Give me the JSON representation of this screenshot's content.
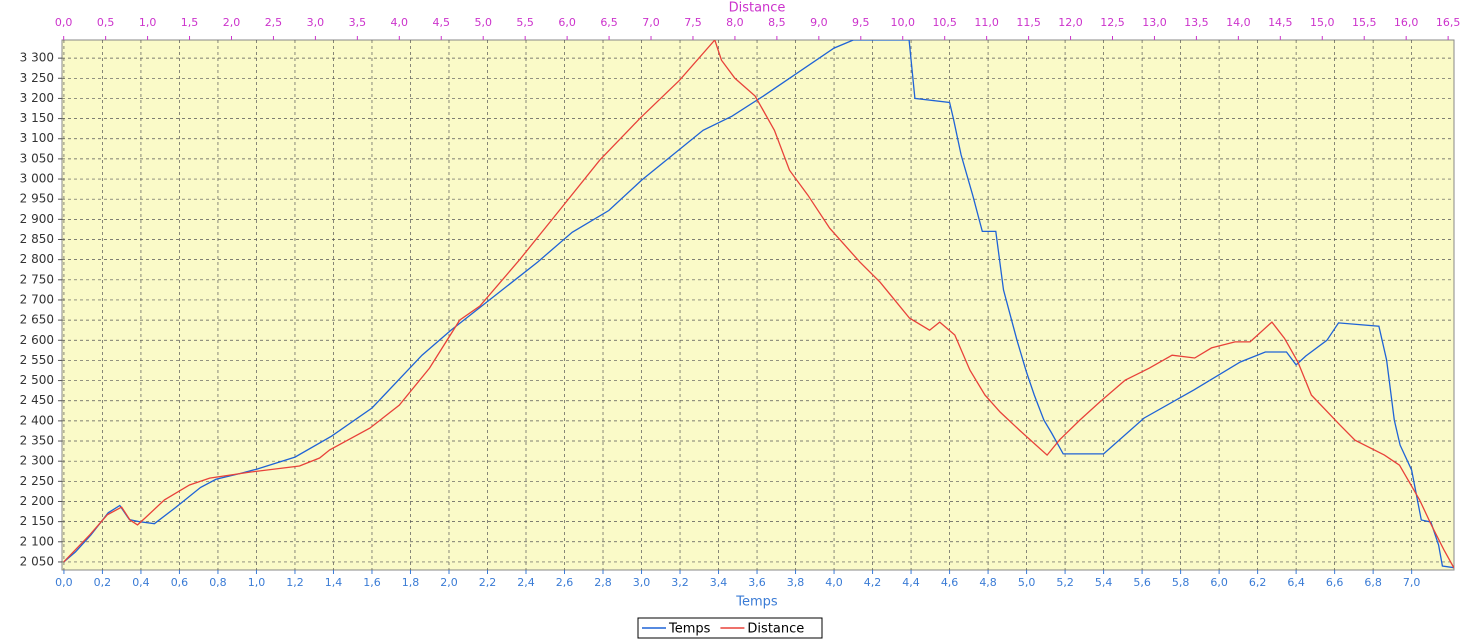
{
  "chart_data": {
    "type": "line",
    "x_label": "Temps",
    "x2_label": "Distance",
    "xlim": [
      -0.01,
      7.22
    ],
    "x2lim": [
      -0.02,
      16.57
    ],
    "ylim": [
      2030,
      3345
    ],
    "grid": true,
    "legend": "bottom",
    "background": "#fafac8",
    "yticks": [
      {
        "value": 2050,
        "label": "2 050"
      },
      {
        "value": 2100,
        "label": "2 100"
      },
      {
        "value": 2150,
        "label": "2 150"
      },
      {
        "value": 2200,
        "label": "2 200"
      },
      {
        "value": 2250,
        "label": "2 250"
      },
      {
        "value": 2300,
        "label": "2 300"
      },
      {
        "value": 2350,
        "label": "2 350"
      },
      {
        "value": 2400,
        "label": "2 400"
      },
      {
        "value": 2450,
        "label": "2 450"
      },
      {
        "value": 2500,
        "label": "2 500"
      },
      {
        "value": 2550,
        "label": "2 550"
      },
      {
        "value": 2600,
        "label": "2 600"
      },
      {
        "value": 2650,
        "label": "2 650"
      },
      {
        "value": 2700,
        "label": "2 700"
      },
      {
        "value": 2750,
        "label": "2 750"
      },
      {
        "value": 2800,
        "label": "2 800"
      },
      {
        "value": 2850,
        "label": "2 850"
      },
      {
        "value": 2900,
        "label": "2 900"
      },
      {
        "value": 2950,
        "label": "2 950"
      },
      {
        "value": 3000,
        "label": "3 000"
      },
      {
        "value": 3050,
        "label": "3 050"
      },
      {
        "value": 3100,
        "label": "3 100"
      },
      {
        "value": 3150,
        "label": "3 150"
      },
      {
        "value": 3200,
        "label": "3 200"
      },
      {
        "value": 3250,
        "label": "3 250"
      },
      {
        "value": 3300,
        "label": "3 300"
      }
    ],
    "xticks": [
      {
        "value": 0,
        "label": "0,0"
      },
      {
        "value": 0.2,
        "label": "0,2"
      },
      {
        "value": 0.4,
        "label": "0,4"
      },
      {
        "value": 0.6,
        "label": "0,6"
      },
      {
        "value": 0.8,
        "label": "0,8"
      },
      {
        "value": 1.0,
        "label": "1,0"
      },
      {
        "value": 1.2,
        "label": "1,2"
      },
      {
        "value": 1.4,
        "label": "1,4"
      },
      {
        "value": 1.6,
        "label": "1,6"
      },
      {
        "value": 1.8,
        "label": "1,8"
      },
      {
        "value": 2.0,
        "label": "2,0"
      },
      {
        "value": 2.2,
        "label": "2,2"
      },
      {
        "value": 2.4,
        "label": "2,4"
      },
      {
        "value": 2.6,
        "label": "2,6"
      },
      {
        "value": 2.8,
        "label": "2,8"
      },
      {
        "value": 3.0,
        "label": "3,0"
      },
      {
        "value": 3.2,
        "label": "3,2"
      },
      {
        "value": 3.4,
        "label": "3,4"
      },
      {
        "value": 3.6,
        "label": "3,6"
      },
      {
        "value": 3.8,
        "label": "3,8"
      },
      {
        "value": 4.0,
        "label": "4,0"
      },
      {
        "value": 4.2,
        "label": "4,2"
      },
      {
        "value": 4.4,
        "label": "4,4"
      },
      {
        "value": 4.6,
        "label": "4,6"
      },
      {
        "value": 4.8,
        "label": "4,8"
      },
      {
        "value": 5.0,
        "label": "5,0"
      },
      {
        "value": 5.2,
        "label": "5,2"
      },
      {
        "value": 5.4,
        "label": "5,4"
      },
      {
        "value": 5.6,
        "label": "5,6"
      },
      {
        "value": 5.8,
        "label": "5,8"
      },
      {
        "value": 6.0,
        "label": "6,0"
      },
      {
        "value": 6.2,
        "label": "6,2"
      },
      {
        "value": 6.4,
        "label": "6,4"
      },
      {
        "value": 6.6,
        "label": "6,6"
      },
      {
        "value": 6.8,
        "label": "6,8"
      },
      {
        "value": 7.0,
        "label": "7,0"
      }
    ],
    "x2ticks": [
      {
        "value": 0,
        "label": "0,0"
      },
      {
        "value": 0.5,
        "label": "0,5"
      },
      {
        "value": 1.0,
        "label": "1,0"
      },
      {
        "value": 1.5,
        "label": "1,5"
      },
      {
        "value": 2.0,
        "label": "2,0"
      },
      {
        "value": 2.5,
        "label": "2,5"
      },
      {
        "value": 3.0,
        "label": "3,0"
      },
      {
        "value": 3.5,
        "label": "3,5"
      },
      {
        "value": 4.0,
        "label": "4,0"
      },
      {
        "value": 4.5,
        "label": "4,5"
      },
      {
        "value": 5.0,
        "label": "5,0"
      },
      {
        "value": 5.5,
        "label": "5,5"
      },
      {
        "value": 6.0,
        "label": "6,0"
      },
      {
        "value": 6.5,
        "label": "6,5"
      },
      {
        "value": 7.0,
        "label": "7,0"
      },
      {
        "value": 7.5,
        "label": "7,5"
      },
      {
        "value": 8.0,
        "label": "8,0"
      },
      {
        "value": 8.5,
        "label": "8,5"
      },
      {
        "value": 9.0,
        "label": "9,0"
      },
      {
        "value": 9.5,
        "label": "9,5"
      },
      {
        "value": 10.0,
        "label": "10,0"
      },
      {
        "value": 10.5,
        "label": "10,5"
      },
      {
        "value": 11.0,
        "label": "11,0"
      },
      {
        "value": 11.5,
        "label": "11,5"
      },
      {
        "value": 12.0,
        "label": "12,0"
      },
      {
        "value": 12.5,
        "label": "12,5"
      },
      {
        "value": 13.0,
        "label": "13,0"
      },
      {
        "value": 13.5,
        "label": "13,5"
      },
      {
        "value": 14.0,
        "label": "14,0"
      },
      {
        "value": 14.5,
        "label": "14,5"
      },
      {
        "value": 15.0,
        "label": "15,0"
      },
      {
        "value": 15.5,
        "label": "15,5"
      },
      {
        "value": 16.0,
        "label": "16,0"
      },
      {
        "value": 16.5,
        "label": "16,5"
      }
    ],
    "series": [
      {
        "name": "Temps",
        "color": "#1f63d6",
        "x": [
          0,
          0.06,
          0.14,
          0.23,
          0.29,
          0.34,
          0.39,
          0.47,
          0.58,
          0.71,
          0.79,
          0.92,
          1.0,
          1.2,
          1.39,
          1.6,
          1.86,
          2.01,
          2.13,
          2.46,
          2.64,
          2.83,
          3.0,
          3.32,
          3.47,
          3.63,
          4.0,
          4.1,
          4.39,
          4.42,
          4.6,
          4.62,
          4.66,
          4.72,
          4.77,
          4.84,
          4.88,
          4.95,
          5.0,
          5.04,
          5.09,
          5.13,
          5.19,
          5.4,
          5.61,
          5.87,
          6.11,
          6.24,
          6.35,
          6.4,
          6.45,
          6.56,
          6.62,
          6.83,
          6.87,
          6.91,
          6.94,
          7.0,
          7.05,
          7.1,
          7.14,
          7.16,
          7.23
        ],
        "values": [
          2050,
          2075,
          2117,
          2172,
          2190,
          2155,
          2150,
          2145,
          2185,
          2235,
          2255,
          2270,
          2280,
          2310,
          2362,
          2432,
          2563,
          2625,
          2670,
          2794,
          2868,
          2922,
          2997,
          3121,
          3156,
          3205,
          3325,
          3345,
          3345,
          3200,
          3190,
          3150,
          3060,
          2960,
          2870,
          2870,
          2725,
          2600,
          2520,
          2464,
          2402,
          2370,
          2318,
          2318,
          2407,
          2477,
          2546,
          2571,
          2571,
          2539,
          2561,
          2600,
          2643,
          2635,
          2551,
          2402,
          2340,
          2278,
          2154,
          2149,
          2092,
          2040,
          2035
        ]
      },
      {
        "name": "Distance",
        "color": "#e8423a",
        "axis": "x2",
        "x": [
          0,
          0.31,
          0.52,
          0.69,
          0.79,
          0.88,
          0.97,
          1.2,
          1.5,
          1.74,
          2.22,
          2.81,
          3.05,
          3.17,
          3.65,
          4.0,
          4.36,
          4.72,
          4.96,
          5.43,
          5.91,
          6.39,
          6.87,
          7.34,
          7.76,
          7.84,
          8.0,
          8.24,
          8.47,
          8.65,
          8.87,
          9.13,
          9.49,
          9.73,
          10.08,
          10.32,
          10.44,
          10.62,
          10.8,
          10.98,
          11.16,
          11.39,
          11.72,
          11.87,
          12.11,
          12.35,
          12.65,
          12.94,
          13.21,
          13.48,
          13.68,
          13.96,
          14.14,
          14.4,
          14.55,
          14.71,
          14.87,
          15.21,
          15.39,
          15.74,
          15.92,
          16.16,
          16.3,
          16.45,
          16.57
        ],
        "values": [
          2050,
          2117,
          2167,
          2186,
          2154,
          2142,
          2159,
          2204,
          2241,
          2258,
          2273,
          2288,
          2308,
          2328,
          2382,
          2439,
          2531,
          2650,
          2685,
          2799,
          2923,
          3047,
          3151,
          3245,
          3345,
          3295,
          3250,
          3206,
          3121,
          3022,
          2960,
          2878,
          2794,
          2744,
          2655,
          2625,
          2645,
          2613,
          2526,
          2464,
          2422,
          2377,
          2315,
          2353,
          2402,
          2447,
          2501,
          2531,
          2563,
          2556,
          2581,
          2596,
          2596,
          2645,
          2605,
          2546,
          2464,
          2390,
          2352,
          2315,
          2290,
          2204,
          2142,
          2080,
          2035
        ]
      }
    ]
  }
}
